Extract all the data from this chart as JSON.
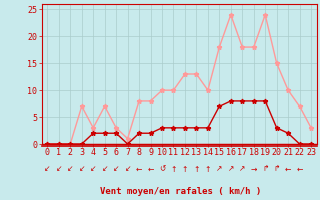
{
  "x": [
    0,
    1,
    2,
    3,
    4,
    5,
    6,
    7,
    8,
    9,
    10,
    11,
    12,
    13,
    14,
    15,
    16,
    17,
    18,
    19,
    20,
    21,
    22,
    23
  ],
  "y_avg": [
    0,
    0,
    0,
    0,
    2,
    2,
    2,
    0,
    2,
    2,
    3,
    3,
    3,
    3,
    3,
    7,
    8,
    8,
    8,
    8,
    3,
    2,
    0,
    0
  ],
  "y_gust": [
    0,
    0,
    0,
    7,
    3,
    7,
    3,
    1,
    8,
    8,
    10,
    10,
    13,
    13,
    10,
    18,
    24,
    18,
    18,
    24,
    15,
    10,
    7,
    3
  ],
  "avg_color": "#cc0000",
  "gust_color": "#ff9999",
  "bg_color": "#c8eaec",
  "grid_color": "#aacccc",
  "xlabel": "Vent moyen/en rafales ( km/h )",
  "ylim": [
    0,
    26
  ],
  "xlim": [
    -0.5,
    23.5
  ],
  "yticks": [
    0,
    5,
    10,
    15,
    20,
    25
  ],
  "xticks": [
    0,
    1,
    2,
    3,
    4,
    5,
    6,
    7,
    8,
    9,
    10,
    11,
    12,
    13,
    14,
    15,
    16,
    17,
    18,
    19,
    20,
    21,
    22,
    23
  ],
  "tick_color": "#cc0000",
  "label_fontsize": 6.5,
  "tick_fontsize": 6,
  "wind_arrows": [
    "↙",
    "↙",
    "↙",
    "↙",
    "↙",
    "↙",
    "↙",
    "↙",
    "←",
    "←",
    "↺",
    "↑",
    "↑",
    "↑",
    "↑",
    "↗",
    "↗",
    "↗",
    "→",
    "↱",
    "↱",
    "←",
    "←",
    ""
  ]
}
